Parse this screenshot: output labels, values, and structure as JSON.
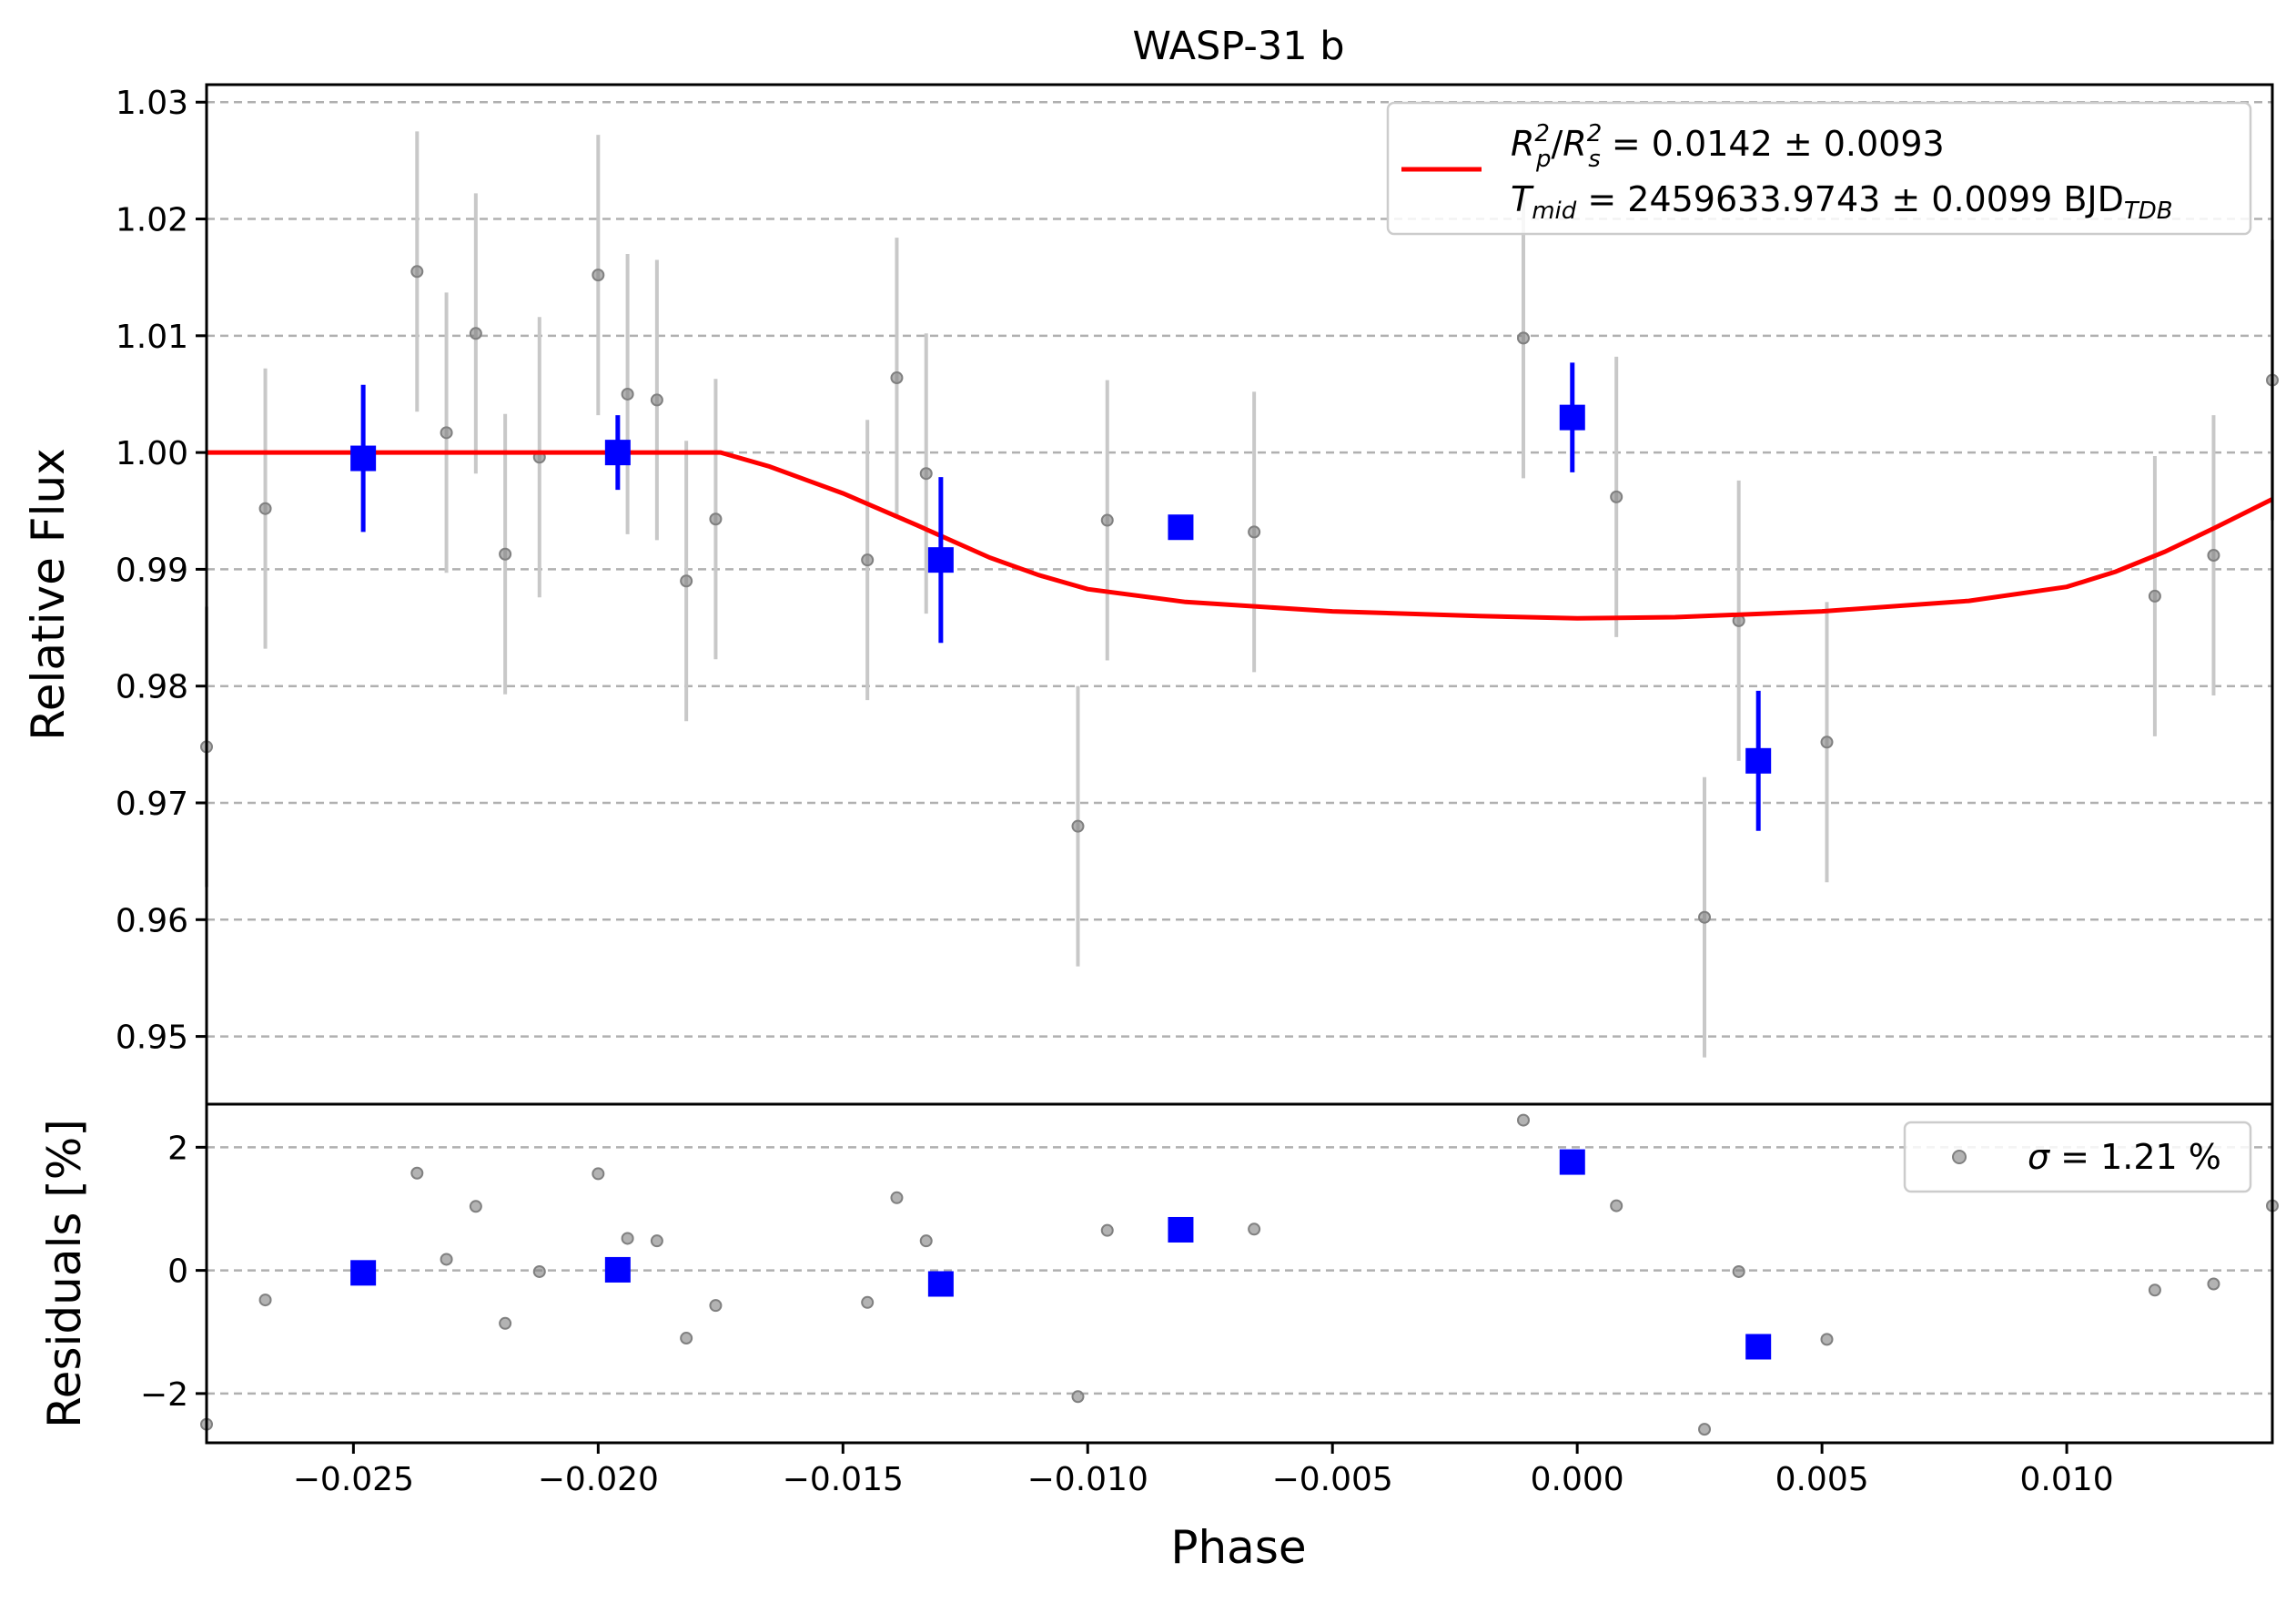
{
  "chart_data": {
    "type": "scatter",
    "title": "WASP-31 b",
    "xlabel": "Phase",
    "xlim": [
      -0.028,
      0.0142
    ],
    "x_ticks": [
      -0.025,
      -0.02,
      -0.015,
      -0.01,
      -0.005,
      0.0,
      0.005,
      0.01
    ],
    "x_tick_labels": [
      "−0.025",
      "−0.020",
      "−0.015",
      "−0.010",
      "−0.005",
      "0.000",
      "0.005",
      "0.010"
    ],
    "grid": true,
    "colors": {
      "raw": "#808080",
      "raw_err": "#c8c8c8",
      "binned": "#0000ff",
      "model": "#ff0000"
    },
    "top_panel": {
      "ylabel": "Relative Flux",
      "ylim": [
        0.9442,
        1.0315
      ],
      "y_ticks": [
        0.95,
        0.96,
        0.97,
        0.98,
        0.99,
        1.0,
        1.01,
        1.02,
        1.03
      ],
      "y_tick_labels": [
        "0.95",
        "0.96",
        "0.97",
        "0.98",
        "0.99",
        "1.00",
        "1.01",
        "1.02",
        "1.03"
      ],
      "legend_position": "upper right",
      "legend": {
        "line1": {
          "r": "R",
          "p": "p",
          "two": "2",
          "s": "s",
          "rest": " = 0.0142 ± 0.0093"
        },
        "line2": {
          "t": "T",
          "mid": "mid",
          "rest": " = 2459633.9743 ± 0.0099 BJD",
          "tdb": "TDB"
        }
      },
      "raw": {
        "x": [
          -0.028,
          -0.0268,
          -0.0237,
          -0.0231,
          -0.0225,
          -0.0219,
          -0.0212,
          -0.02,
          -0.0194,
          -0.0188,
          -0.0182,
          -0.0176,
          -0.0145,
          -0.0139,
          -0.0133,
          -0.0102,
          -0.0096,
          -0.0066,
          -0.0011,
          0.0008,
          0.0026,
          0.0033,
          0.0051,
          0.0118,
          0.013,
          0.0142
        ],
        "y": [
          0.9748,
          0.9952,
          1.0155,
          1.0017,
          1.0102,
          0.9913,
          0.9996,
          1.0152,
          1.005,
          1.0045,
          0.989,
          0.9943,
          0.9908,
          1.0064,
          0.9982,
          0.968,
          0.9942,
          0.9932,
          1.0098,
          0.9962,
          0.9602,
          0.9856,
          0.9752,
          0.9877,
          0.9912,
          1.0062
        ],
        "yerr": [
          0.012,
          0.012,
          0.012,
          0.012,
          0.012,
          0.012,
          0.012,
          0.012,
          0.012,
          0.012,
          0.012,
          0.012,
          0.012,
          0.012,
          0.012,
          0.012,
          0.012,
          0.012,
          0.012,
          0.012,
          0.012,
          0.012,
          0.012,
          0.012,
          0.012,
          0.012
        ]
      },
      "binned": {
        "x": [
          -0.0248,
          -0.0196,
          -0.013,
          -0.0081,
          -0.0001,
          0.0037
        ],
        "y": [
          0.9995,
          1.0,
          0.9908,
          0.9936,
          1.003,
          0.9736
        ],
        "yerr": [
          0.0063,
          0.0032,
          0.0071,
          0.0,
          0.0047,
          0.006
        ]
      },
      "model": {
        "x": [
          -0.028,
          -0.0175,
          -0.0165,
          -0.015,
          -0.0135,
          -0.012,
          -0.011,
          -0.01,
          -0.008,
          -0.005,
          -0.002,
          0.0,
          0.002,
          0.005,
          0.008,
          0.01,
          0.011,
          0.012,
          0.013,
          0.0142
        ],
        "y": [
          1.0,
          1.0,
          0.9988,
          0.9965,
          0.9938,
          0.991,
          0.9895,
          0.9883,
          0.9872,
          0.9864,
          0.986,
          0.9858,
          0.9859,
          0.9864,
          0.9873,
          0.9885,
          0.9898,
          0.9915,
          0.9935,
          0.996
        ]
      }
    },
    "bottom_panel": {
      "ylabel": "Residuals [%]",
      "ylim": [
        -2.8,
        2.7
      ],
      "y_ticks": [
        -2,
        0,
        2
      ],
      "y_tick_labels": [
        "−2",
        "0",
        "2"
      ],
      "legend_position": "upper right",
      "legend": {
        "sigma": "σ",
        "rest": " = 1.21 %"
      },
      "raw": {
        "x": [
          -0.028,
          -0.0268,
          -0.0237,
          -0.0231,
          -0.0225,
          -0.0219,
          -0.0212,
          -0.02,
          -0.0194,
          -0.0188,
          -0.0182,
          -0.0176,
          -0.0145,
          -0.0139,
          -0.0133,
          -0.0102,
          -0.0096,
          -0.0066,
          -0.0011,
          0.0008,
          0.0026,
          0.0033,
          0.0051,
          0.0118,
          0.013,
          0.0142
        ],
        "y": [
          -2.5,
          -0.48,
          1.58,
          0.18,
          1.04,
          -0.86,
          -0.02,
          1.57,
          0.52,
          0.48,
          -1.1,
          -0.57,
          -0.52,
          1.18,
          0.48,
          -2.05,
          0.65,
          0.67,
          2.44,
          1.05,
          -2.58,
          -0.02,
          -1.12,
          -0.32,
          -0.22,
          1.05
        ]
      },
      "binned": {
        "x": [
          -0.0248,
          -0.0196,
          -0.013,
          -0.0081,
          -0.0001,
          0.0037
        ],
        "y": [
          -0.04,
          0.01,
          -0.22,
          0.66,
          1.76,
          -1.24
        ]
      }
    }
  }
}
